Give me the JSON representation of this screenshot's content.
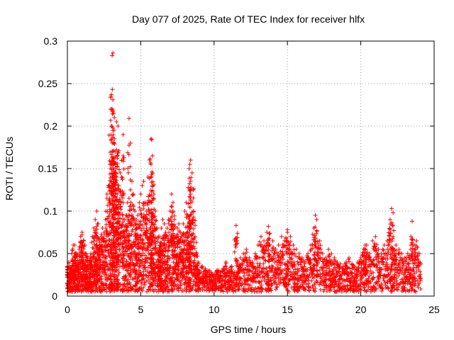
{
  "chart_data": {
    "type": "scatter",
    "title": "Day 077 of 2025, Rate Of TEC Index for receiver hlfx",
    "xlabel": "GPS time / hours",
    "ylabel": "ROTI / TECUs",
    "xlim": [
      0,
      25
    ],
    "ylim": [
      0,
      0.3
    ],
    "grid": true,
    "marker": "plus",
    "color": "#ff0000",
    "x_ticks": [
      {
        "value": 0,
        "label": "0"
      },
      {
        "value": 5,
        "label": "5"
      },
      {
        "value": 10,
        "label": "10"
      },
      {
        "value": 15,
        "label": "15"
      },
      {
        "value": 20,
        "label": "20"
      },
      {
        "value": 25,
        "label": "25"
      }
    ],
    "y_ticks": [
      {
        "value": 0,
        "label": "0"
      },
      {
        "value": 0.05,
        "label": "0.05"
      },
      {
        "value": 0.1,
        "label": "0.1"
      },
      {
        "value": 0.15,
        "label": "0.15"
      },
      {
        "value": 0.2,
        "label": "0.2"
      },
      {
        "value": 0.25,
        "label": "0.25"
      },
      {
        "value": 0.3,
        "label": "0.3"
      }
    ],
    "series": [
      {
        "name": "ROTI",
        "x": [
          0.0,
          0.1,
          0.2,
          0.3,
          0.4,
          0.5,
          0.6,
          0.7,
          0.8,
          0.9,
          1.0,
          1.1,
          1.2,
          1.3,
          1.4,
          1.5,
          1.6,
          1.7,
          1.8,
          1.9,
          2.0,
          2.1,
          2.2,
          2.3,
          2.4,
          2.5,
          2.6,
          2.7,
          2.8,
          2.9,
          3.0,
          3.05,
          3.1,
          3.15,
          3.2,
          3.25,
          3.3,
          3.35,
          3.4,
          3.5,
          3.6,
          3.7,
          3.8,
          3.9,
          4.0,
          4.1,
          4.2,
          4.3,
          4.4,
          4.5,
          4.6,
          4.7,
          4.8,
          4.9,
          5.0,
          5.1,
          5.2,
          5.3,
          5.4,
          5.5,
          5.6,
          5.7,
          5.8,
          5.9,
          6.0,
          6.1,
          6.2,
          6.3,
          6.4,
          6.5,
          6.6,
          6.7,
          6.8,
          6.9,
          7.0,
          7.1,
          7.2,
          7.3,
          7.4,
          7.5,
          7.6,
          7.7,
          7.8,
          7.9,
          8.0,
          8.1,
          8.2,
          8.3,
          8.4,
          8.5,
          8.6,
          8.7,
          8.8,
          8.9,
          9.0,
          9.2,
          9.4,
          9.6,
          9.8,
          10.0,
          10.2,
          10.4,
          10.6,
          10.8,
          11.0,
          11.2,
          11.4,
          11.6,
          11.8,
          12.0,
          12.2,
          12.4,
          12.6,
          12.8,
          13.0,
          13.2,
          13.4,
          13.6,
          13.8,
          14.0,
          14.2,
          14.4,
          14.6,
          14.8,
          15.0,
          15.2,
          15.4,
          15.6,
          15.8,
          16.0,
          16.2,
          16.4,
          16.6,
          16.8,
          17.0,
          17.2,
          17.4,
          17.6,
          17.8,
          18.0,
          18.2,
          18.4,
          18.6,
          18.8,
          19.0,
          19.2,
          19.4,
          19.6,
          19.8,
          20.0,
          20.2,
          20.4,
          20.6,
          20.8,
          21.0,
          21.2,
          21.4,
          21.6,
          21.8,
          22.0,
          22.2,
          22.4,
          22.6,
          22.8,
          23.0,
          23.2,
          23.4,
          23.6,
          23.8,
          24.0,
          3.05,
          3.1,
          3.0,
          3.2,
          2.95,
          3.15,
          3.35,
          3.45,
          4.2,
          3.8,
          5.7,
          5.75,
          5.8,
          8.4,
          8.35,
          8.3,
          11.5,
          13.7,
          15.0,
          16.9,
          20.3,
          22.1,
          22.2,
          23.5,
          1.0,
          2.0,
          4.7,
          6.3,
          7.2,
          0.5
        ],
        "y": [
          0.035,
          0.04,
          0.03,
          0.05,
          0.06,
          0.045,
          0.05,
          0.04,
          0.055,
          0.07,
          0.072,
          0.065,
          0.06,
          0.05,
          0.045,
          0.04,
          0.05,
          0.07,
          0.08,
          0.09,
          0.1,
          0.085,
          0.06,
          0.07,
          0.08,
          0.075,
          0.09,
          0.12,
          0.13,
          0.155,
          0.2,
          0.22,
          0.195,
          0.18,
          0.185,
          0.17,
          0.15,
          0.14,
          0.12,
          0.13,
          0.145,
          0.14,
          0.11,
          0.09,
          0.095,
          0.11,
          0.115,
          0.125,
          0.135,
          0.12,
          0.1,
          0.09,
          0.095,
          0.11,
          0.12,
          0.13,
          0.135,
          0.11,
          0.1,
          0.14,
          0.16,
          0.155,
          0.13,
          0.12,
          0.1,
          0.08,
          0.07,
          0.06,
          0.08,
          0.09,
          0.085,
          0.075,
          0.08,
          0.09,
          0.1,
          0.12,
          0.11,
          0.09,
          0.07,
          0.08,
          0.085,
          0.075,
          0.07,
          0.085,
          0.1,
          0.11,
          0.095,
          0.09,
          0.12,
          0.145,
          0.1,
          0.07,
          0.05,
          0.04,
          0.03,
          0.035,
          0.032,
          0.03,
          0.028,
          0.025,
          0.03,
          0.028,
          0.032,
          0.04,
          0.03,
          0.035,
          0.028,
          0.04,
          0.045,
          0.05,
          0.055,
          0.045,
          0.04,
          0.05,
          0.06,
          0.07,
          0.065,
          0.075,
          0.06,
          0.065,
          0.055,
          0.06,
          0.07,
          0.065,
          0.075,
          0.07,
          0.06,
          0.055,
          0.05,
          0.045,
          0.04,
          0.05,
          0.06,
          0.08,
          0.09,
          0.065,
          0.05,
          0.045,
          0.055,
          0.05,
          0.045,
          0.04,
          0.038,
          0.035,
          0.04,
          0.045,
          0.038,
          0.035,
          0.04,
          0.045,
          0.055,
          0.06,
          0.05,
          0.065,
          0.07,
          0.055,
          0.05,
          0.06,
          0.065,
          0.09,
          0.07,
          0.06,
          0.055,
          0.05,
          0.045,
          0.05,
          0.055,
          0.06,
          0.065,
          0.05,
          0.283,
          0.286,
          0.237,
          0.21,
          0.22,
          0.215,
          0.205,
          0.2,
          0.209,
          0.19,
          0.185,
          0.184,
          0.165,
          0.16,
          0.155,
          0.15,
          0.083,
          0.082,
          0.078,
          0.095,
          0.06,
          0.103,
          0.098,
          0.088,
          0.075,
          0.065,
          0.08,
          0.07,
          0.1,
          0.06
        ]
      }
    ]
  }
}
